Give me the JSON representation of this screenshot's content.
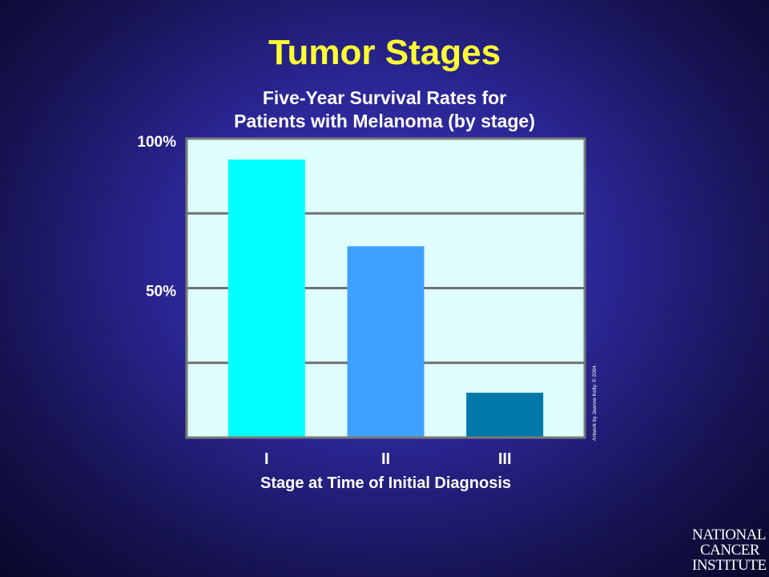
{
  "slide": {
    "title": "Tumor Stages",
    "credit": "Artwork by Jeanne Kelly. © 2004.",
    "logo_lines": [
      "NATIONAL",
      "CANCER",
      "INSTITUTE"
    ]
  },
  "chart_data": {
    "type": "bar",
    "title_lines": [
      "Five-Year Survival Rates for",
      "Patients with Melanoma (by stage)"
    ],
    "categories": [
      "I",
      "II",
      "III"
    ],
    "values": [
      93,
      64,
      15
    ],
    "colors": [
      "#00ffff",
      "#3fa1ff",
      "#0078a8"
    ],
    "xlabel": "Stage at Time of Initial Diagnosis",
    "ylabel": "",
    "ylim": [
      0,
      100
    ],
    "yticks": [
      {
        "value": 100,
        "label": "100%"
      },
      {
        "value": 50,
        "label": "50%"
      }
    ],
    "gridlines": [
      25,
      50,
      75
    ],
    "grid": true,
    "plot_background": "#dfffff"
  }
}
